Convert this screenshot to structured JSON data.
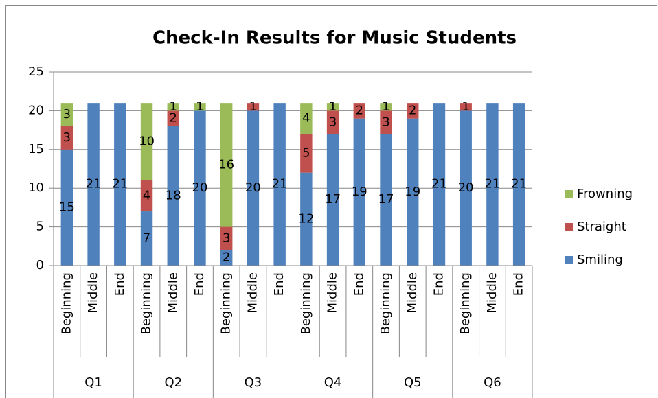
{
  "chart_data": {
    "type": "stacked_bar",
    "title": "Check-In Results for Music Students",
    "categories": [
      "Beginning",
      "Middle",
      "End",
      "Beginning",
      "Middle",
      "End",
      "Beginning",
      "Middle",
      "End",
      "Beginning",
      "Middle",
      "End",
      "Beginning",
      "Middle",
      "End",
      "Beginning",
      "Middle",
      "End"
    ],
    "groups": [
      "Q1",
      "Q2",
      "Q3",
      "Q4",
      "Q5",
      "Q6"
    ],
    "series": [
      {
        "name": "Smiling",
        "color": "#4f81bd",
        "values": [
          15,
          21,
          21,
          7,
          18,
          20,
          2,
          20,
          21,
          12,
          17,
          19,
          17,
          19,
          21,
          20,
          21,
          21
        ]
      },
      {
        "name": "Straight",
        "color": "#c0504d",
        "values": [
          3,
          0,
          0,
          4,
          2,
          0,
          3,
          1,
          0,
          5,
          3,
          2,
          3,
          2,
          0,
          1,
          0,
          0
        ]
      },
      {
        "name": "Frowning",
        "color": "#9bbb59",
        "values": [
          3,
          0,
          0,
          10,
          1,
          1,
          16,
          0,
          0,
          4,
          1,
          0,
          1,
          0,
          0,
          0,
          0,
          0
        ]
      }
    ],
    "ylim": [
      0,
      25
    ],
    "yticks": [
      0,
      5,
      10,
      15,
      20,
      25
    ],
    "grid": true,
    "legend": "right"
  }
}
